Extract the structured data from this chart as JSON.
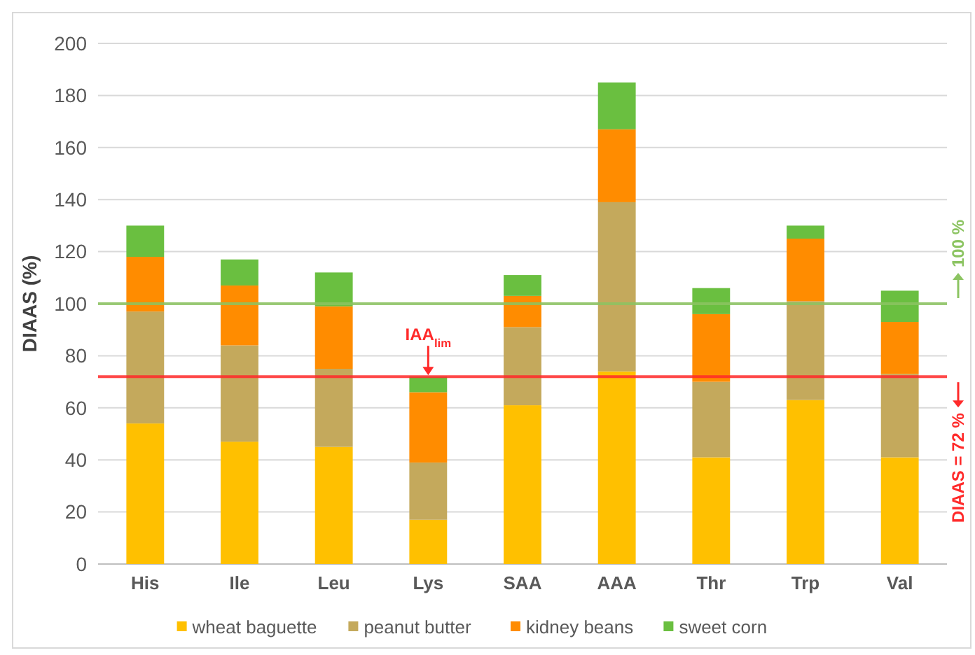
{
  "chart_data": {
    "type": "bar",
    "stacked": true,
    "ylabel": "DIAAS (%)",
    "categories": [
      "His",
      "Ile",
      "Leu",
      "Lys",
      "SAA",
      "AAA",
      "Thr",
      "Trp",
      "Val"
    ],
    "series": [
      {
        "name": "wheat baguette",
        "color": "#ffc000",
        "values": [
          54,
          47,
          45,
          17,
          61,
          74,
          41,
          63,
          41
        ]
      },
      {
        "name": "peanut butter",
        "color": "#c4a95c",
        "values": [
          43,
          37,
          30,
          22,
          30,
          65,
          29,
          38,
          32
        ]
      },
      {
        "name": "kidney beans",
        "color": "#ff8c00",
        "values": [
          21,
          23,
          24,
          27,
          12,
          28,
          26,
          24,
          20
        ]
      },
      {
        "name": "sweet corn",
        "color": "#6abf40",
        "values": [
          12,
          10,
          13,
          6,
          8,
          18,
          10,
          5,
          12
        ]
      }
    ],
    "ylim": [
      0,
      200
    ],
    "yticks": [
      0,
      20,
      40,
      60,
      80,
      100,
      120,
      140,
      160,
      180,
      200
    ],
    "grid": "y",
    "legend": "bottom",
    "ref_lines": [
      {
        "axis": "y",
        "value": 100,
        "label": "100 %",
        "color": "#8cc462"
      },
      {
        "axis": "y",
        "value": 72,
        "label": "DIAAS = 72 %",
        "color": "#ff2a2a"
      }
    ],
    "annotations": [
      {
        "text": "IAA$_{lim}$",
        "x": "Lys",
        "y": 72
      }
    ]
  }
}
